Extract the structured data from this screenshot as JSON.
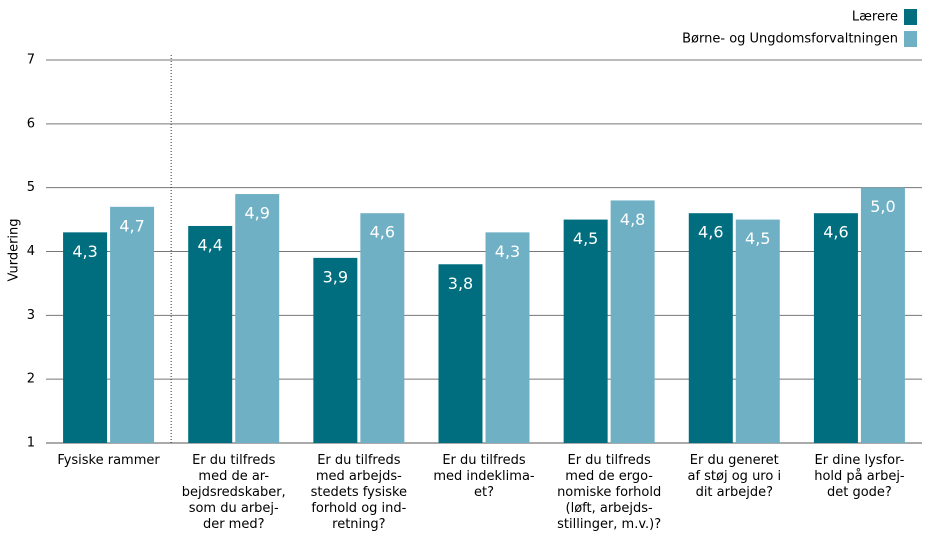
{
  "chart_data": {
    "type": "bar",
    "y_label": "Vurdering",
    "categories": [
      [
        "Fysiske rammer"
      ],
      [
        "Er du tilfreds",
        "med de ar-",
        "bejdsredskaber,",
        "som du arbej-",
        "der med?"
      ],
      [
        "Er du tilfreds",
        "med arbejds-",
        "stedets fysiske",
        "forhold og ind-",
        "retning?"
      ],
      [
        "Er du tilfreds",
        "med indeklima-",
        "et?"
      ],
      [
        "Er du tilfreds",
        "med de ergo-",
        "nomiske forhold",
        "(løft, arbejds-",
        "stillinger, m.v.)?"
      ],
      [
        "Er du generet",
        "af støj og uro i",
        "dit arbejde?"
      ],
      [
        "Er dine lysfor-",
        "hold på arbej-",
        "det gode?"
      ]
    ],
    "series": [
      {
        "name": "Lærere",
        "color": "#006e7f",
        "values": [
          4.3,
          4.4,
          3.9,
          3.8,
          4.5,
          4.6,
          4.6
        ],
        "value_labels": [
          "4,3",
          "4,4",
          "3,9",
          "3,8",
          "4,5",
          "4,6",
          "4,6"
        ]
      },
      {
        "name": "Børne- og Ungdomsforvaltningen",
        "color": "#6fb0c5",
        "values": [
          4.7,
          4.9,
          4.6,
          4.3,
          4.8,
          4.5,
          5.0
        ],
        "value_labels": [
          "4,7",
          "4,9",
          "4,6",
          "4,3",
          "4,8",
          "4,5",
          "5,0"
        ]
      }
    ],
    "ylim": [
      1,
      7
    ],
    "yticks": [
      1,
      2,
      3,
      4,
      5,
      6,
      7
    ],
    "grid": true,
    "legend": "top-right"
  }
}
